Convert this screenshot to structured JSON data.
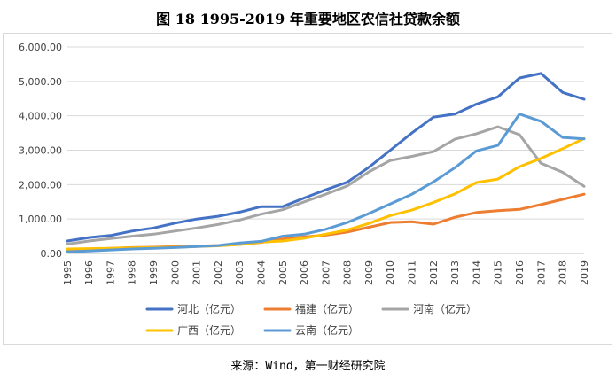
{
  "title": "图 18 1995-2019 年重要地区农信社贷款余额",
  "source": "来源：Wind，第一财经研究院",
  "chart_data": {
    "type": "line",
    "title": "",
    "xlabel": "",
    "ylabel": "",
    "ylim": [
      0,
      6000
    ],
    "yticks": [
      "0.00",
      "1,000.00",
      "2,000.00",
      "3,000.00",
      "4,000.00",
      "5,000.00",
      "6,000.00"
    ],
    "grid": true,
    "legend": "bottom",
    "x": [
      "1995",
      "1996",
      "1997",
      "1998",
      "1999",
      "2000",
      "2001",
      "2002",
      "2003",
      "2004",
      "2005",
      "2006",
      "2007",
      "2008",
      "2009",
      "2010",
      "2011",
      "2012",
      "2013",
      "2014",
      "2015",
      "2016",
      "2017",
      "2018",
      "2019"
    ],
    "series": [
      {
        "name": "河北（亿元）",
        "color": "#4472c4",
        "values": [
          360,
          460,
          520,
          650,
          740,
          880,
          1000,
          1080,
          1200,
          1360,
          1360,
          1610,
          1850,
          2070,
          2500,
          3000,
          3500,
          3960,
          4050,
          4340,
          4550,
          5100,
          5230,
          4680,
          4480
        ]
      },
      {
        "name": "福建（亿元）",
        "color": "#ed7d31",
        "values": [
          90,
          120,
          150,
          170,
          180,
          200,
          210,
          230,
          260,
          320,
          420,
          480,
          530,
          620,
          760,
          900,
          920,
          850,
          1050,
          1190,
          1240,
          1280,
          1420,
          1570,
          1720
        ]
      },
      {
        "name": "河南（亿元）",
        "color": "#a5a5a5",
        "values": [
          270,
          360,
          430,
          500,
          560,
          650,
          740,
          840,
          970,
          1140,
          1270,
          1500,
          1720,
          1960,
          2370,
          2700,
          2820,
          2960,
          3320,
          3480,
          3680,
          3450,
          2620,
          2360,
          1950
        ]
      },
      {
        "name": "广西（亿元）",
        "color": "#ffc000",
        "values": [
          130,
          140,
          150,
          160,
          170,
          180,
          200,
          220,
          260,
          330,
          360,
          440,
          560,
          680,
          870,
          1100,
          1260,
          1480,
          1730,
          2060,
          2160,
          2520,
          2760,
          3040,
          3340
        ]
      },
      {
        "name": "云南（亿元）",
        "color": "#5b9bd5",
        "values": [
          50,
          70,
          100,
          130,
          150,
          170,
          200,
          230,
          300,
          350,
          500,
          560,
          700,
          900,
          1160,
          1440,
          1720,
          2080,
          2490,
          2980,
          3140,
          4050,
          3840,
          3370,
          3330
        ]
      }
    ]
  }
}
